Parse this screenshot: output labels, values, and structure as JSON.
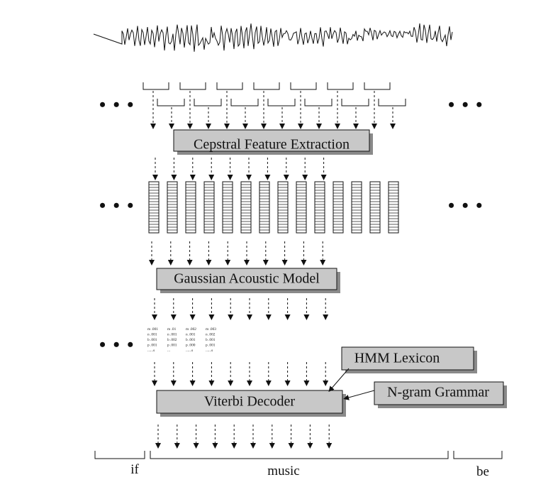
{
  "stages": {
    "feature_extraction": "Cepstral Feature Extraction",
    "acoustic_model": "Gaussian Acoustic Model",
    "decoder": "Viterbi Decoder"
  },
  "knowledge_sources": {
    "lexicon": "HMM Lexicon",
    "grammar": "N-gram Grammar"
  },
  "ellipsis": "• • •",
  "likelihood_tables": [
    {
      "rows": [
        "m .001",
        "n .001",
        "b .001",
        "p .001",
        "......s"
      ]
    },
    {
      "rows": [
        "m .01",
        "n .001",
        "b .002",
        "p .001",
        "..."
      ]
    },
    {
      "rows": [
        "m .002",
        "n .001",
        "b .001",
        "p .000",
        "......s"
      ]
    },
    {
      "rows": [
        "m .003",
        "n .002",
        "b .001",
        "p .001",
        "......s"
      ]
    }
  ],
  "output_words": [
    "if",
    "music",
    "be"
  ],
  "colors": {
    "box_fill": "#c8c8c8",
    "box_shadow": "#8a8a8a",
    "ink": "#111111"
  }
}
